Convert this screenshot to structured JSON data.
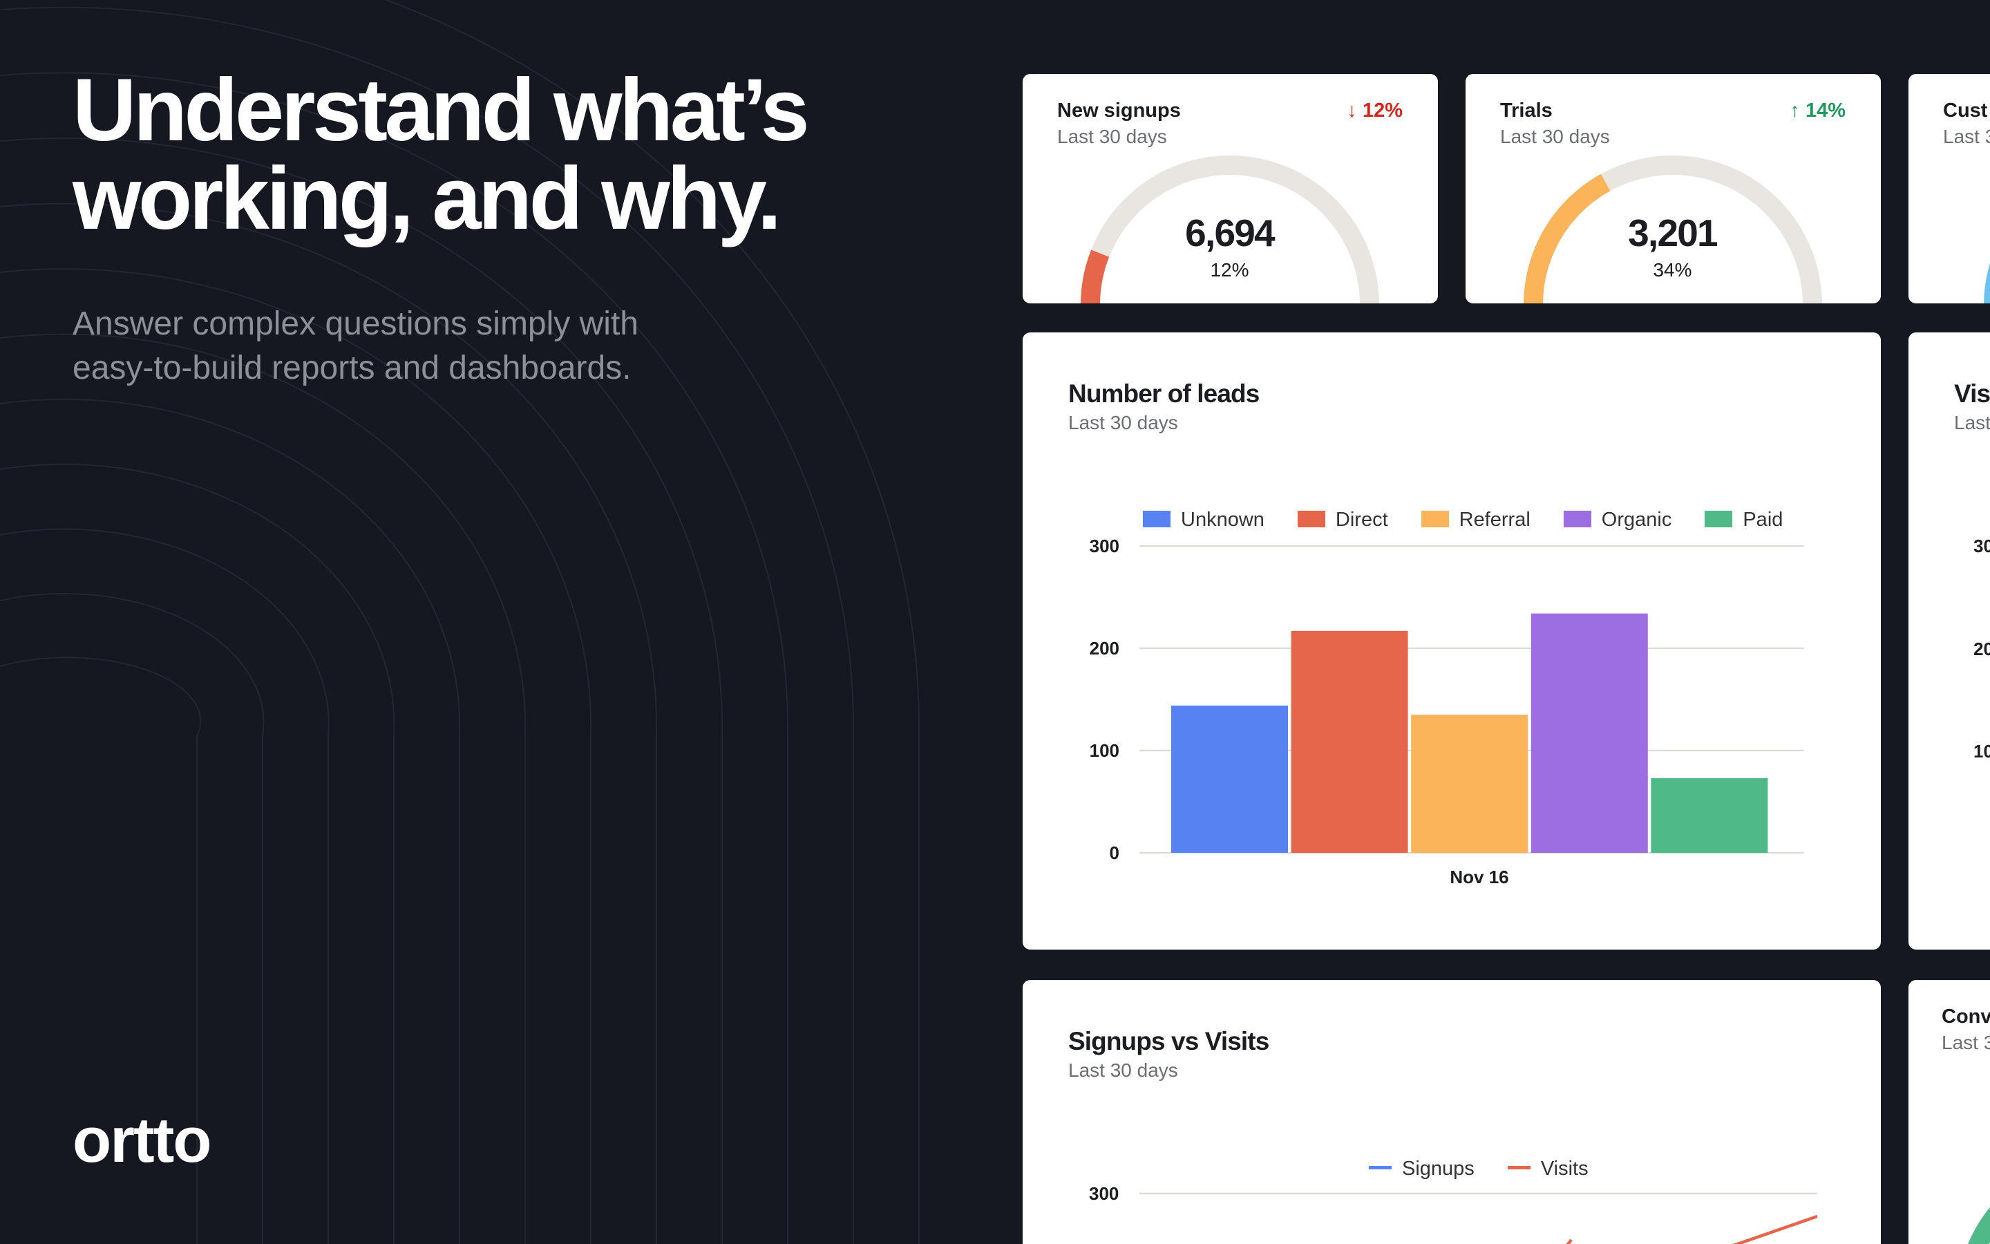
{
  "hero": {
    "headline": "Understand what’s working, and why.",
    "subtext": "Answer complex questions simply with easy-to-build reports and dashboards.",
    "logo": "ortto"
  },
  "stats": [
    {
      "title": "New signups",
      "subtitle": "Last 30 days",
      "delta": "↓ 12%",
      "delta_dir": "down",
      "value": "6,694",
      "percent": "12%",
      "fraction": 0.12,
      "color": "#e5664b"
    },
    {
      "title": "Trials",
      "subtitle": "Last 30 days",
      "delta": "↑ 14%",
      "delta_dir": "up",
      "value": "3,201",
      "percent": "34%",
      "fraction": 0.34,
      "color": "#fbb45a"
    },
    {
      "title": "Cust",
      "subtitle": "Last 3",
      "color": "#6cc2ec"
    }
  ],
  "colors": {
    "down": "#d6261c",
    "up": "#1f9a5c",
    "bg": "#151821"
  },
  "side_cards": {
    "visits": {
      "title": "Vis",
      "subtitle": "Last",
      "ticks": [
        "30",
        "20",
        "10"
      ]
    },
    "conv": {
      "title": "Conv",
      "subtitle": "Last 3",
      "color": "#4fba87"
    }
  },
  "leads": {
    "title": "Number of leads",
    "subtitle": "Last 30 days"
  },
  "signups_visits": {
    "title": "Signups vs Visits",
    "subtitle": "Last 30 days"
  },
  "chart_data": [
    {
      "type": "bar",
      "title": "Number of leads",
      "categories": [
        "Nov 16"
      ],
      "ylim": [
        0,
        300
      ],
      "yticks": [
        "0",
        "100",
        "200",
        "300"
      ],
      "grid": true,
      "legend": "top",
      "series": [
        {
          "name": "Unknown",
          "values": [
            144
          ],
          "color": "#5682f2"
        },
        {
          "name": "Direct",
          "values": [
            217
          ],
          "color": "#e5664b"
        },
        {
          "name": "Referral",
          "values": [
            135
          ],
          "color": "#fbb45a"
        },
        {
          "name": "Organic",
          "values": [
            234
          ],
          "color": "#9d6ee2"
        },
        {
          "name": "Paid",
          "values": [
            73
          ],
          "color": "#4fba87"
        }
      ]
    },
    {
      "type": "line",
      "title": "Signups vs Visits",
      "yticks": [
        "300"
      ],
      "legend": "top",
      "series": [
        {
          "name": "Signups",
          "color": "#5682f2"
        },
        {
          "name": "Visits",
          "color": "#e5664b"
        }
      ]
    }
  ]
}
